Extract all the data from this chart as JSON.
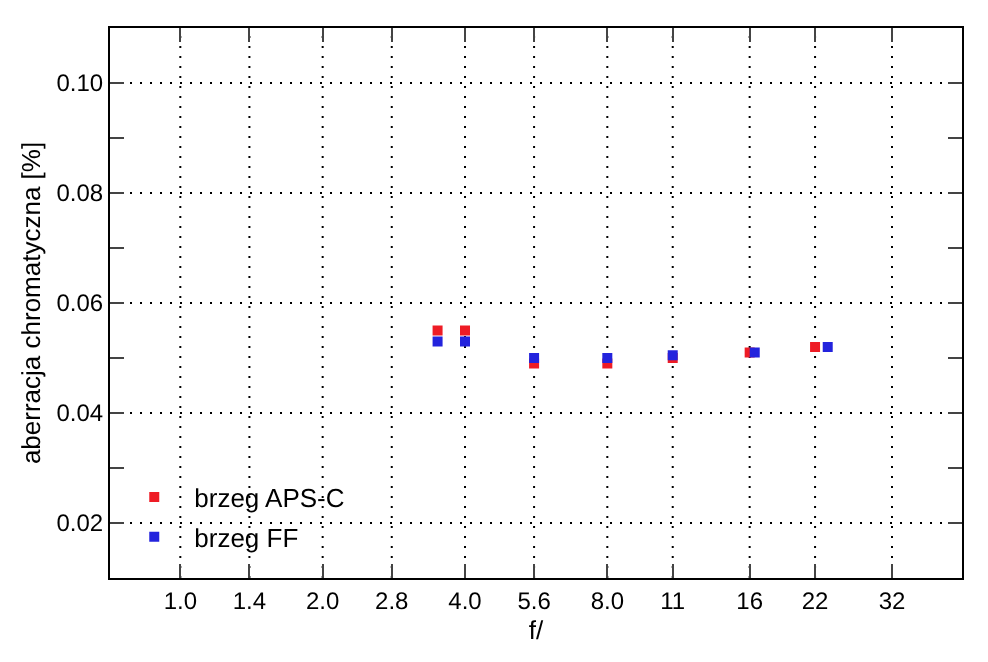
{
  "chart_data": {
    "type": "scatter",
    "xlabel": "f/",
    "ylabel": "aberracja chromatyczna [%]",
    "log": "x",
    "xlim": [
      0.71,
      45
    ],
    "ylim": [
      0.01,
      0.11
    ],
    "xticks": [
      {
        "value": 1.0,
        "label": "1.0"
      },
      {
        "value": 1.4,
        "label": "1.4"
      },
      {
        "value": 2.0,
        "label": "2.0"
      },
      {
        "value": 2.8,
        "label": "2.8"
      },
      {
        "value": 4.0,
        "label": "4.0"
      },
      {
        "value": 5.6,
        "label": "5.6"
      },
      {
        "value": 8.0,
        "label": "8.0"
      },
      11,
      16,
      22,
      32
    ],
    "yticks": [
      {
        "value": 0.02,
        "label": "0.02"
      },
      {
        "value": 0.03,
        "label": null
      },
      {
        "value": 0.04,
        "label": "0.04"
      },
      {
        "value": 0.05,
        "label": null
      },
      {
        "value": 0.06,
        "label": "0.06"
      },
      {
        "value": 0.07,
        "label": null
      },
      {
        "value": 0.08,
        "label": "0.08"
      },
      {
        "value": 0.09,
        "label": null
      },
      {
        "value": 0.1,
        "label": "0.10"
      }
    ],
    "series": [
      {
        "name": "brzeg APS-C",
        "color": "#ee1c25",
        "x": [
          3.5,
          4,
          5.6,
          8,
          11,
          16,
          22
        ],
        "values": [
          0.055,
          0.055,
          0.049,
          0.049,
          0.05,
          0.051,
          0.052
        ]
      },
      {
        "name": "brzeg FF",
        "color": "#2323dd",
        "x": [
          3.5,
          4,
          5.6,
          8,
          11,
          16.4,
          23.4
        ],
        "values": [
          0.053,
          0.053,
          0.05,
          0.05,
          0.0505,
          0.051,
          0.052
        ]
      }
    ],
    "marker": "square",
    "grid": true,
    "legend": "bottom left"
  }
}
